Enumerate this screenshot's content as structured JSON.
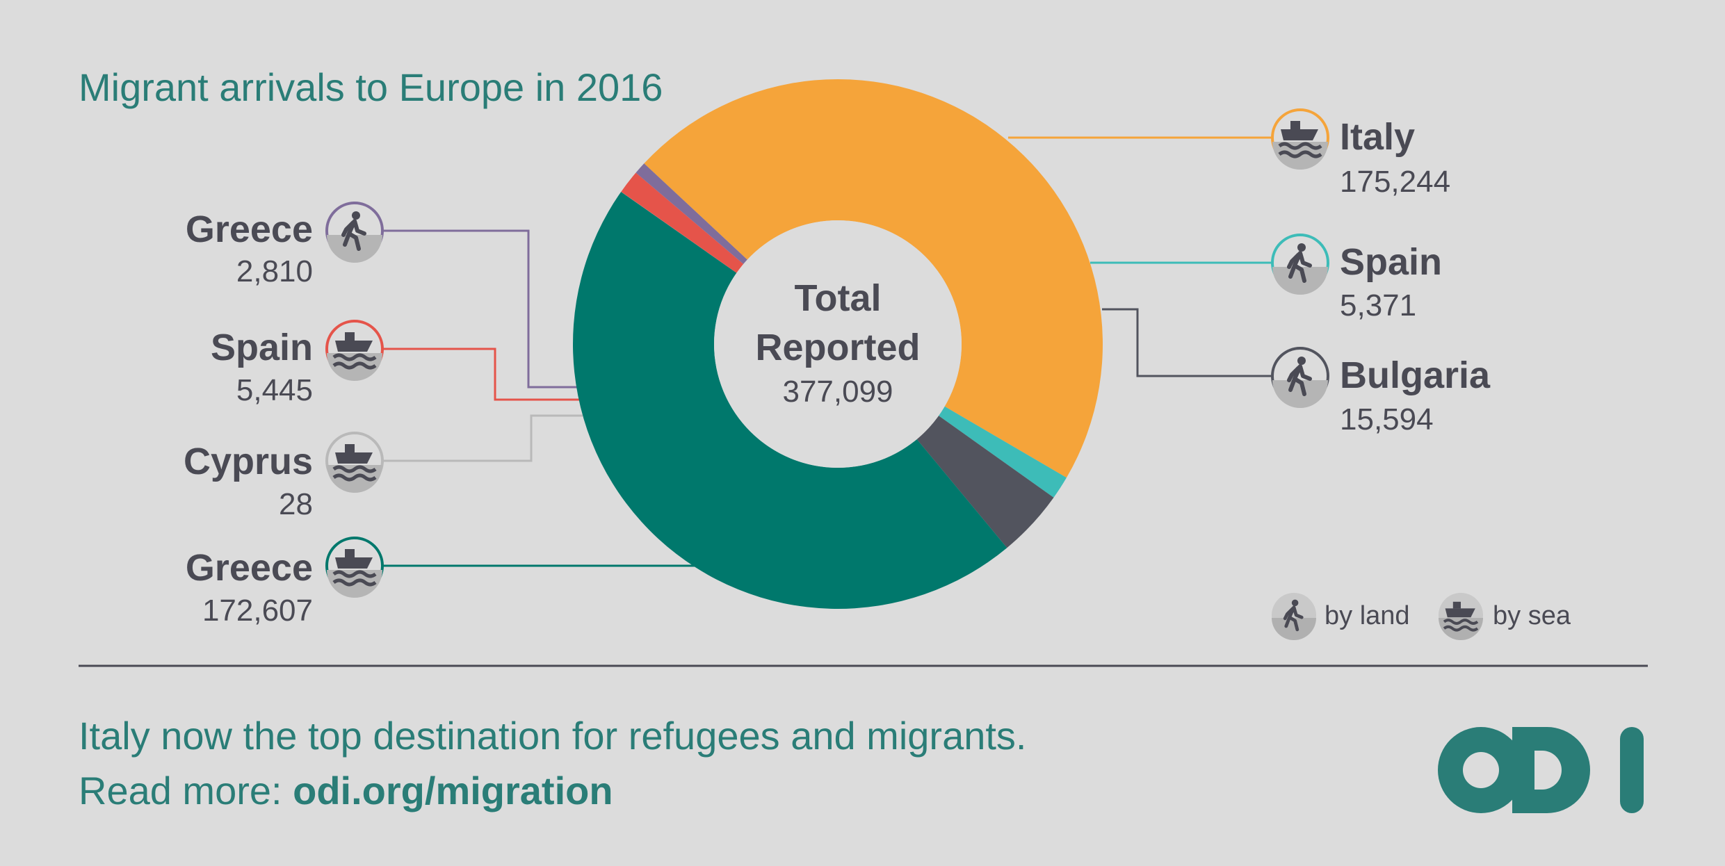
{
  "title": "Migrant arrivals to Europe in 2016",
  "center": {
    "line1": "Total",
    "line2": "Reported",
    "total": "377,099"
  },
  "chart_data": {
    "type": "pie",
    "title": "Migrant arrivals to Europe in 2016",
    "total": 377099,
    "slices": [
      {
        "country": "Italy",
        "mode": "sea",
        "value": 175244,
        "label": "175,244",
        "color": "#f5a43a"
      },
      {
        "country": "Spain",
        "mode": "land",
        "value": 5371,
        "label": "5,371",
        "color": "#3dbcb8"
      },
      {
        "country": "Bulgaria",
        "mode": "land",
        "value": 15594,
        "label": "15,594",
        "color": "#52545e"
      },
      {
        "country": "Greece",
        "mode": "sea",
        "value": 172607,
        "label": "172,607",
        "color": "#00786c"
      },
      {
        "country": "Cyprus",
        "mode": "sea",
        "value": 28,
        "label": "28",
        "color": "#b9b9b9"
      },
      {
        "country": "Spain",
        "mode": "sea",
        "value": 5445,
        "label": "5,445",
        "color": "#e5544a"
      },
      {
        "country": "Greece",
        "mode": "land",
        "value": 2810,
        "label": "2,810",
        "color": "#7f6d9b"
      }
    ]
  },
  "legend": {
    "land": "by land",
    "sea": "by sea"
  },
  "footer": {
    "line1": "Italy now the top destination for refugees and migrants.",
    "line2_prefix": "Read more: ",
    "line2_link": "odi.org/migration"
  },
  "logo": {
    "text": "odi",
    "color": "#2a7d77"
  },
  "colors": {
    "accent": "#2a7d77",
    "text": "#4a4a54",
    "background": "#dcdcdc"
  },
  "icons": {
    "land": "walking-person-icon",
    "sea": "boat-icon"
  }
}
